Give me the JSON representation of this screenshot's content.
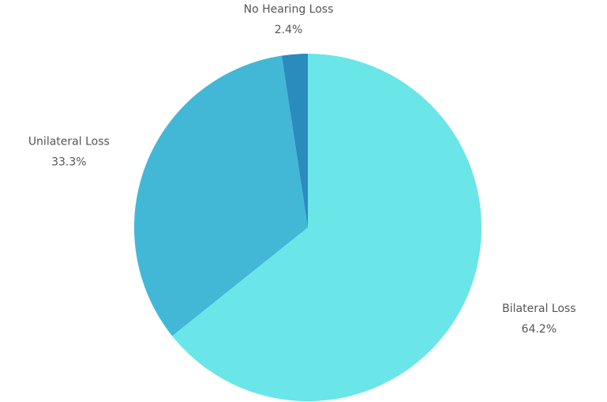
{
  "chart_data": {
    "type": "pie",
    "categories": [
      "Bilateral Loss",
      "Unilateral Loss",
      "No Hearing Loss"
    ],
    "values": [
      64.2,
      33.3,
      2.4
    ],
    "value_labels": [
      "64.2%",
      "33.3%",
      "2.4%"
    ],
    "colors": [
      "#6ae5e8",
      "#42b8d6",
      "#2a8bbd"
    ]
  }
}
